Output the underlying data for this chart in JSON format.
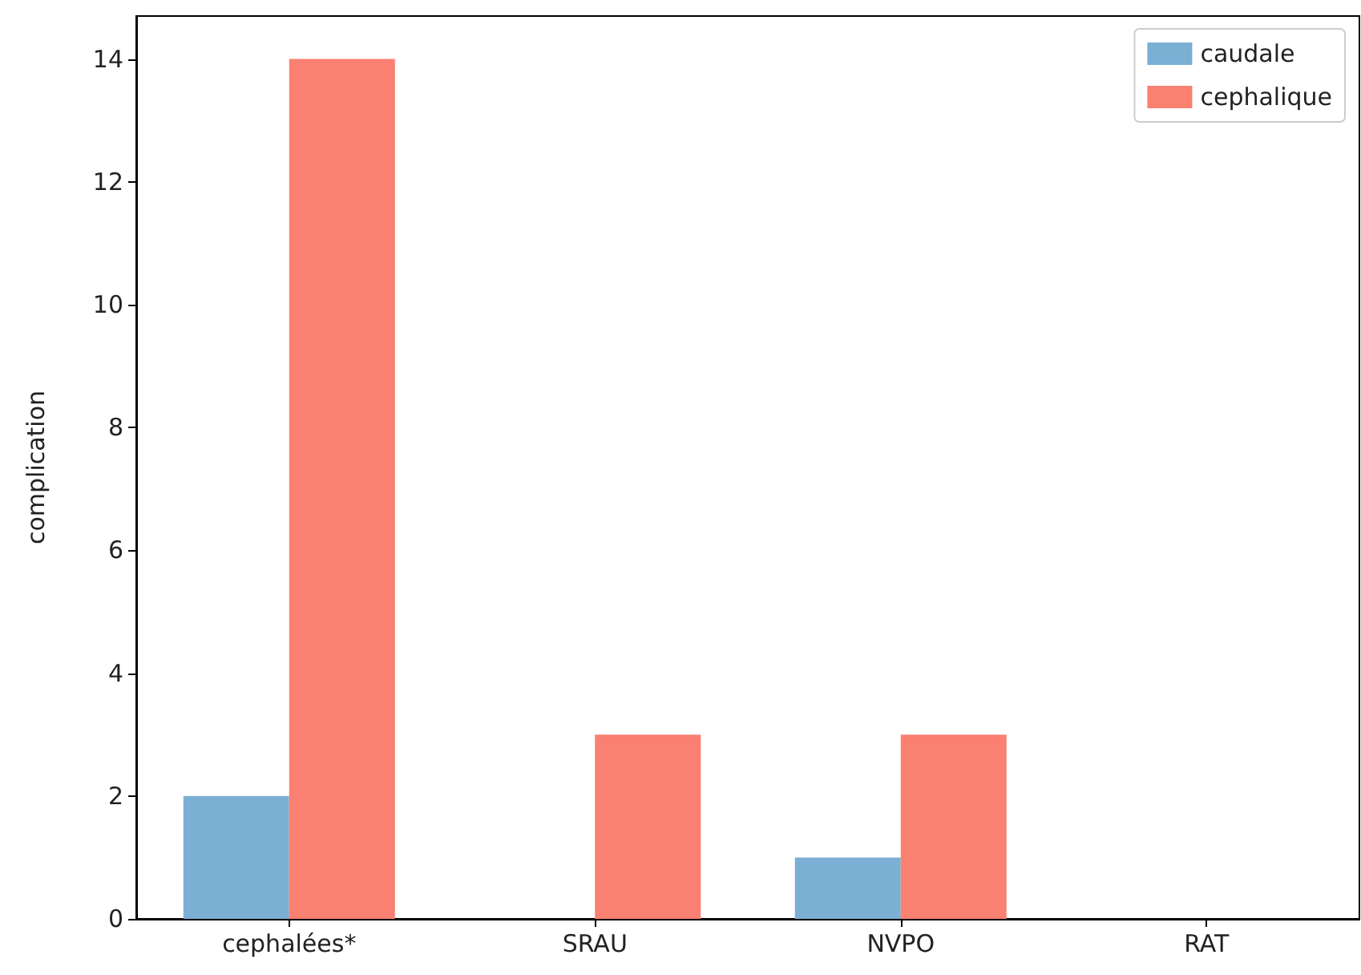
{
  "chart_data": {
    "type": "bar",
    "ylabel": "complication",
    "categories": [
      "cephalées*",
      "SRAU",
      "NVPO",
      "RAT"
    ],
    "series": [
      {
        "name": "caudale",
        "color": "#7bafd4",
        "values": [
          2,
          0,
          1,
          0
        ]
      },
      {
        "name": "cephalique",
        "color": "#fa8072",
        "values": [
          14,
          3,
          3,
          0
        ]
      }
    ],
    "ylim": [
      0,
      14.7
    ],
    "yticks": [
      0,
      2,
      4,
      6,
      8,
      10,
      12,
      14
    ],
    "grid": false,
    "legend": "top right"
  }
}
